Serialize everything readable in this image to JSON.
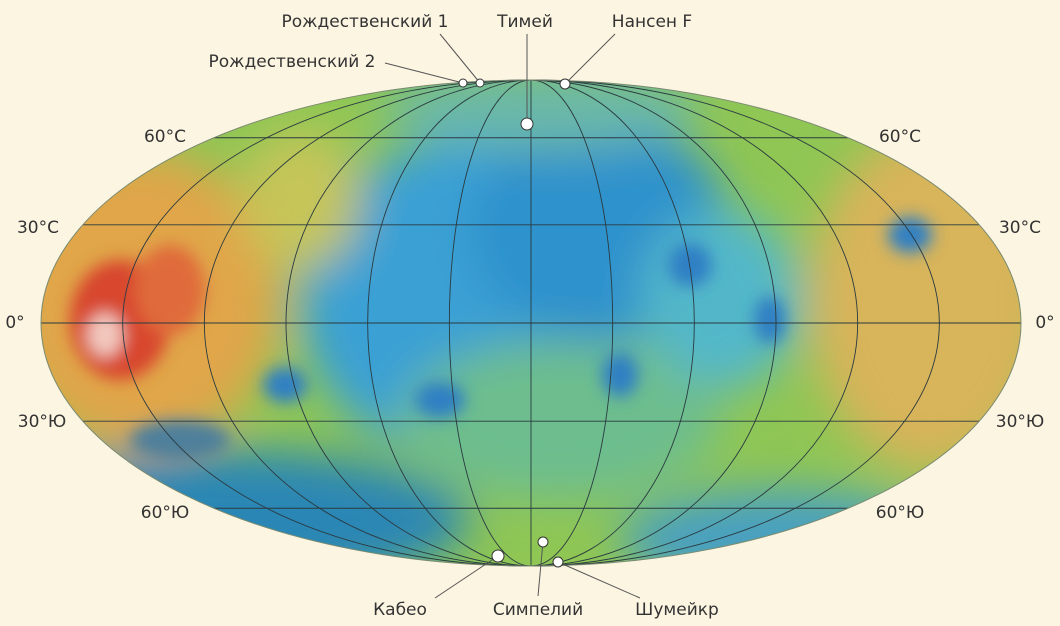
{
  "map": {
    "latitude_labels": [
      "60°С",
      "30°С",
      "0°",
      "30°Ю",
      "60°Ю"
    ],
    "sites": [
      {
        "name": "Рождественский 1"
      },
      {
        "name": "Тимей"
      },
      {
        "name": "Нансен F"
      },
      {
        "name": "Рождественский 2"
      },
      {
        "name": "Кабео"
      },
      {
        "name": "Симпелий"
      },
      {
        "name": "Шумейкр"
      }
    ]
  }
}
